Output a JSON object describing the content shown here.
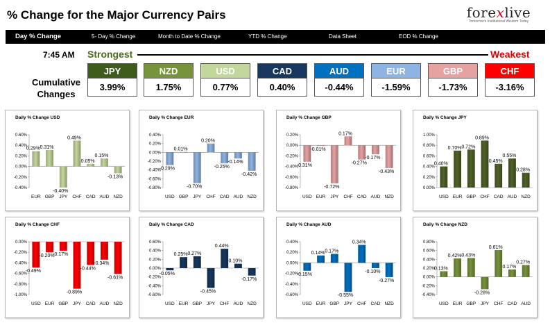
{
  "header": {
    "title": "% Change for the Major Currency Pairs",
    "logo": {
      "word_part1": "fore",
      "word_x": "x",
      "word_part2": "live",
      "tagline": "Tomorrow's Institutional Wisdom Today"
    }
  },
  "nav": {
    "tabs": [
      {
        "label": "Day % Change",
        "active": true
      },
      {
        "label": "5- Day % Change"
      },
      {
        "label": "Month to Date % Change"
      },
      {
        "label": "YTD % Change"
      },
      {
        "label": "Data Sheet"
      },
      {
        "label": "EOD % Change"
      }
    ]
  },
  "summary": {
    "time": "7:45 AM",
    "strongest_label": "Strongest",
    "weakest_label": "Weakest",
    "cumulative_label_line1": "Cumulative",
    "cumulative_label_line2": "Changes",
    "currencies": [
      {
        "code": "JPY",
        "value": "3.99%",
        "color": "#3f5b1c"
      },
      {
        "code": "NZD",
        "value": "1.75%",
        "color": "#77933c"
      },
      {
        "code": "USD",
        "value": "0.77%",
        "color": "#c3d69b"
      },
      {
        "code": "CAD",
        "value": "0.40%",
        "color": "#17375e"
      },
      {
        "code": "AUD",
        "value": "-0.44%",
        "color": "#0070c0"
      },
      {
        "code": "EUR",
        "value": "-1.59%",
        "color": "#8db4e2"
      },
      {
        "code": "GBP",
        "value": "-1.73%",
        "color": "#e6a1a1"
      },
      {
        "code": "CHF",
        "value": "-3.16%",
        "color": "#ff0000"
      }
    ]
  },
  "chart_data": [
    {
      "type": "bar",
      "title": "Daily % Change USD",
      "color": "#c3d69b",
      "categories": [
        "EUR",
        "GBP",
        "JPY",
        "CHF",
        "CAD",
        "AUD",
        "NZD"
      ],
      "values": [
        0.29,
        0.31,
        -0.4,
        0.49,
        0.05,
        0.15,
        -0.13
      ],
      "labels": [
        "0.29%",
        "0.31%",
        "-0.40%",
        "0.49%",
        "0.05%",
        "0.15%",
        "-0.13%"
      ],
      "ylim": [
        -0.4,
        0.6
      ],
      "ticks": [
        "0.60%",
        "0.40%",
        "0.20%",
        "0.00%",
        "-0.20%",
        "-0.40%"
      ]
    },
    {
      "type": "bar",
      "title": "Daily % Change EUR",
      "color": "#8db4e2",
      "categories": [
        "USD",
        "GBP",
        "JPY",
        "CHF",
        "CAD",
        "AUD",
        "NZD"
      ],
      "values": [
        -0.29,
        0.01,
        -0.7,
        0.2,
        -0.25,
        -0.14,
        -0.42
      ],
      "labels": [
        "-0.29%",
        "0.01%",
        "-0.70%",
        "0.20%",
        "-0.25%",
        "-0.14%",
        "-0.42%"
      ],
      "ylim": [
        -0.8,
        0.4
      ],
      "ticks": [
        "0.40%",
        "0.20%",
        "0.00%",
        "-0.20%",
        "-0.40%",
        "-0.60%",
        "-0.80%"
      ]
    },
    {
      "type": "bar",
      "title": "Daily % Change GBP",
      "color": "#e6a1a1",
      "categories": [
        "USD",
        "EUR",
        "JPY",
        "CHF",
        "CAD",
        "AUD",
        "NZD"
      ],
      "values": [
        -0.31,
        -0.01,
        -0.72,
        0.17,
        -0.27,
        -0.17,
        -0.43
      ],
      "labels": [
        "-0.31%",
        "-0.01%",
        "-0.72%",
        "0.17%",
        "-0.27%",
        "-0.17%",
        "-0.43%"
      ],
      "ylim": [
        -0.8,
        0.2
      ],
      "ticks": [
        "0.20%",
        "0.00%",
        "-0.20%",
        "-0.40%",
        "-0.60%",
        "-0.80%"
      ]
    },
    {
      "type": "bar",
      "title": "Daily % Change JPY",
      "color": "#4f6228",
      "categories": [
        "USD",
        "EUR",
        "GBP",
        "CHF",
        "CAD",
        "AUD",
        "NZD"
      ],
      "values": [
        0.4,
        0.7,
        0.72,
        0.89,
        0.45,
        0.55,
        0.28
      ],
      "labels": [
        "0.40%",
        "0.70%",
        "0.72%",
        "0.89%",
        "0.45%",
        "0.55%",
        "0.28%"
      ],
      "ylim": [
        0,
        1.0
      ],
      "ticks": [
        "1.00%",
        "0.80%",
        "0.60%",
        "0.40%",
        "0.20%",
        "0.00%"
      ]
    },
    {
      "type": "bar",
      "title": "Daily % Change CHF",
      "color": "#ff0000",
      "categories": [
        "USD",
        "EUR",
        "GBP",
        "JPY",
        "CAD",
        "AUD",
        "NZD"
      ],
      "values": [
        -0.49,
        -0.2,
        -0.17,
        -0.89,
        -0.44,
        -0.34,
        -0.61
      ],
      "labels": [
        "-0.49%",
        "-0.20%",
        "-0.17%",
        "-0.89%",
        "-0.44%",
        "-0.34%",
        "-0.61%"
      ],
      "ylim": [
        -1.0,
        0
      ],
      "ticks": [
        "0.00%",
        "-0.20%",
        "-0.40%",
        "-0.60%",
        "-0.80%",
        "-1.00%"
      ]
    },
    {
      "type": "bar",
      "title": "Daily % Change CAD",
      "color": "#17375e",
      "categories": [
        "USD",
        "EUR",
        "GBP",
        "JPY",
        "CHF",
        "AUD",
        "NZD"
      ],
      "values": [
        -0.05,
        0.25,
        0.27,
        -0.45,
        0.44,
        0.1,
        -0.17
      ],
      "labels": [
        "-0.05%",
        "0.25%",
        "0.27%",
        "-0.45%",
        "0.44%",
        "0.10%",
        "-0.17%"
      ],
      "ylim": [
        -0.6,
        0.6
      ],
      "ticks": [
        "0.60%",
        "0.40%",
        "0.20%",
        "0.00%",
        "-0.20%",
        "-0.40%",
        "-0.60%"
      ]
    },
    {
      "type": "bar",
      "title": "Daily % Change AUD",
      "color": "#0070c0",
      "categories": [
        "USD",
        "EUR",
        "GBP",
        "JPY",
        "CHF",
        "CAD",
        "NZD"
      ],
      "values": [
        -0.15,
        0.14,
        0.17,
        -0.55,
        0.34,
        -0.1,
        -0.27
      ],
      "labels": [
        "-0.15%",
        "0.14%",
        "0.17%",
        "-0.55%",
        "0.34%",
        "-0.10%",
        "-0.27%"
      ],
      "ylim": [
        -0.6,
        0.4
      ],
      "ticks": [
        "0.40%",
        "0.20%",
        "0.00%",
        "-0.20%",
        "-0.40%",
        "-0.60%"
      ]
    },
    {
      "type": "bar",
      "title": "Daily % Change NZD",
      "color": "#77933c",
      "categories": [
        "USD",
        "EUR",
        "GBP",
        "JPY",
        "CHF",
        "CAD",
        "AUD"
      ],
      "values": [
        0.13,
        0.42,
        0.43,
        -0.28,
        0.61,
        0.17,
        0.27
      ],
      "labels": [
        "0.13%",
        "0.42%",
        "0.43%",
        "-0.28%",
        "0.61%",
        "0.17%",
        "0.27%"
      ],
      "ylim": [
        -0.4,
        0.8
      ],
      "ticks": [
        "0.80%",
        "0.60%",
        "0.40%",
        "0.20%",
        "0.00%",
        "-0.20%",
        "-0.40%"
      ]
    }
  ]
}
